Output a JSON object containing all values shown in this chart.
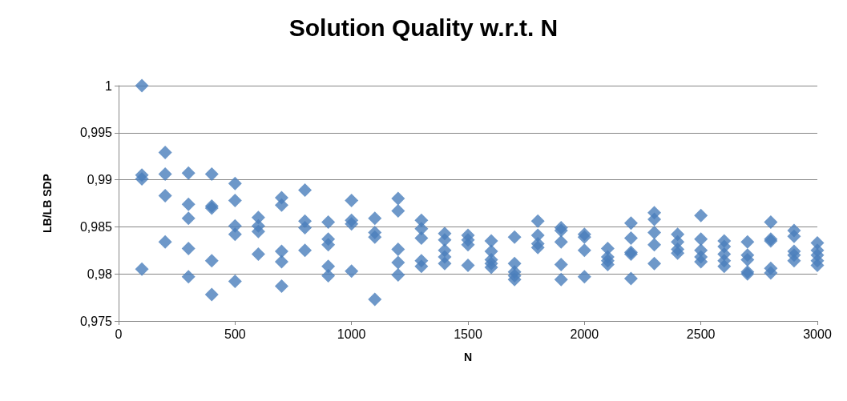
{
  "chart_data": {
    "type": "scatter",
    "title": "Solution Quality w.r.t. N",
    "xlabel": "N",
    "ylabel": "LB/LB SDP",
    "marker": "diamond",
    "grid": "y",
    "xlim": [
      0,
      3000
    ],
    "xticks": [
      0,
      500,
      1000,
      1500,
      2000,
      2500,
      3000
    ],
    "ylim": [
      0.975,
      1
    ],
    "yticks": [
      {
        "value": 0.975,
        "label": "0,975"
      },
      {
        "value": 0.98,
        "label": "0,98"
      },
      {
        "value": 0.985,
        "label": "0,985"
      },
      {
        "value": 0.99,
        "label": "0,99"
      },
      {
        "value": 0.995,
        "label": "0,995"
      },
      1
    ],
    "series": [
      {
        "color": "#4a7ebb",
        "x": [
          100,
          100,
          100,
          100,
          200,
          200,
          200,
          200,
          300,
          300,
          300,
          300,
          300,
          400,
          400,
          400,
          400,
          400,
          500,
          500,
          500,
          500,
          500,
          600,
          600,
          600,
          600,
          700,
          700,
          700,
          700,
          700,
          800,
          800,
          800,
          800,
          900,
          900,
          900,
          900,
          900,
          1000,
          1000,
          1000,
          1000,
          1100,
          1100,
          1100,
          1100,
          1200,
          1200,
          1200,
          1200,
          1200,
          1300,
          1300,
          1300,
          1300,
          1300,
          1400,
          1400,
          1400,
          1400,
          1400,
          1500,
          1500,
          1500,
          1500,
          1600,
          1600,
          1600,
          1600,
          1600,
          1700,
          1700,
          1700,
          1700,
          1700,
          1800,
          1800,
          1800,
          1800,
          1900,
          1900,
          1900,
          1900,
          1900,
          2000,
          2000,
          2000,
          2000,
          2100,
          2100,
          2100,
          2100,
          2200,
          2200,
          2200,
          2200,
          2200,
          2300,
          2300,
          2300,
          2300,
          2300,
          2400,
          2400,
          2400,
          2400,
          2500,
          2500,
          2500,
          2500,
          2500,
          2600,
          2600,
          2600,
          2600,
          2600,
          2700,
          2700,
          2700,
          2700,
          2700,
          2800,
          2800,
          2800,
          2800,
          2800,
          2900,
          2900,
          2900,
          2900,
          2900,
          3000,
          3000,
          3000,
          3000,
          3000
        ],
        "values": [
          1.0,
          0.9905,
          0.9901,
          0.9805,
          0.9929,
          0.9906,
          0.9883,
          0.9834,
          0.9907,
          0.9874,
          0.9859,
          0.9827,
          0.9797,
          0.9906,
          0.9872,
          0.987,
          0.9814,
          0.9778,
          0.9896,
          0.9878,
          0.9851,
          0.9842,
          0.9792,
          0.986,
          0.9851,
          0.9845,
          0.9821,
          0.9881,
          0.9873,
          0.9824,
          0.9813,
          0.9787,
          0.9889,
          0.9856,
          0.9849,
          0.9825,
          0.9855,
          0.9837,
          0.9831,
          0.9808,
          0.9798,
          0.9878,
          0.9857,
          0.9853,
          0.9803,
          0.9859,
          0.9844,
          0.9839,
          0.9773,
          0.988,
          0.9867,
          0.9826,
          0.9812,
          0.9799,
          0.9857,
          0.9848,
          0.9838,
          0.9814,
          0.9808,
          0.9843,
          0.9836,
          0.9825,
          0.9818,
          0.9811,
          0.9841,
          0.9836,
          0.9831,
          0.9809,
          0.9835,
          0.9824,
          0.9815,
          0.9811,
          0.9807,
          0.9839,
          0.9811,
          0.9802,
          0.9798,
          0.9794,
          0.9856,
          0.9841,
          0.9832,
          0.9828,
          0.9849,
          0.9846,
          0.9834,
          0.981,
          0.9794,
          0.9842,
          0.9839,
          0.9825,
          0.9797,
          0.9827,
          0.9818,
          0.9814,
          0.981,
          0.9854,
          0.9838,
          0.9823,
          0.9821,
          0.9795,
          0.9865,
          0.9858,
          0.9844,
          0.9831,
          0.9811,
          0.9842,
          0.9834,
          0.9826,
          0.9822,
          0.9862,
          0.9837,
          0.9825,
          0.9818,
          0.9813,
          0.9835,
          0.9829,
          0.9821,
          0.9814,
          0.9808,
          0.9834,
          0.982,
          0.9815,
          0.9802,
          0.98,
          0.9855,
          0.9837,
          0.9835,
          0.9806,
          0.9801,
          0.9846,
          0.984,
          0.9824,
          0.982,
          0.9814,
          0.9833,
          0.9825,
          0.982,
          0.9814,
          0.9809
        ]
      }
    ]
  }
}
